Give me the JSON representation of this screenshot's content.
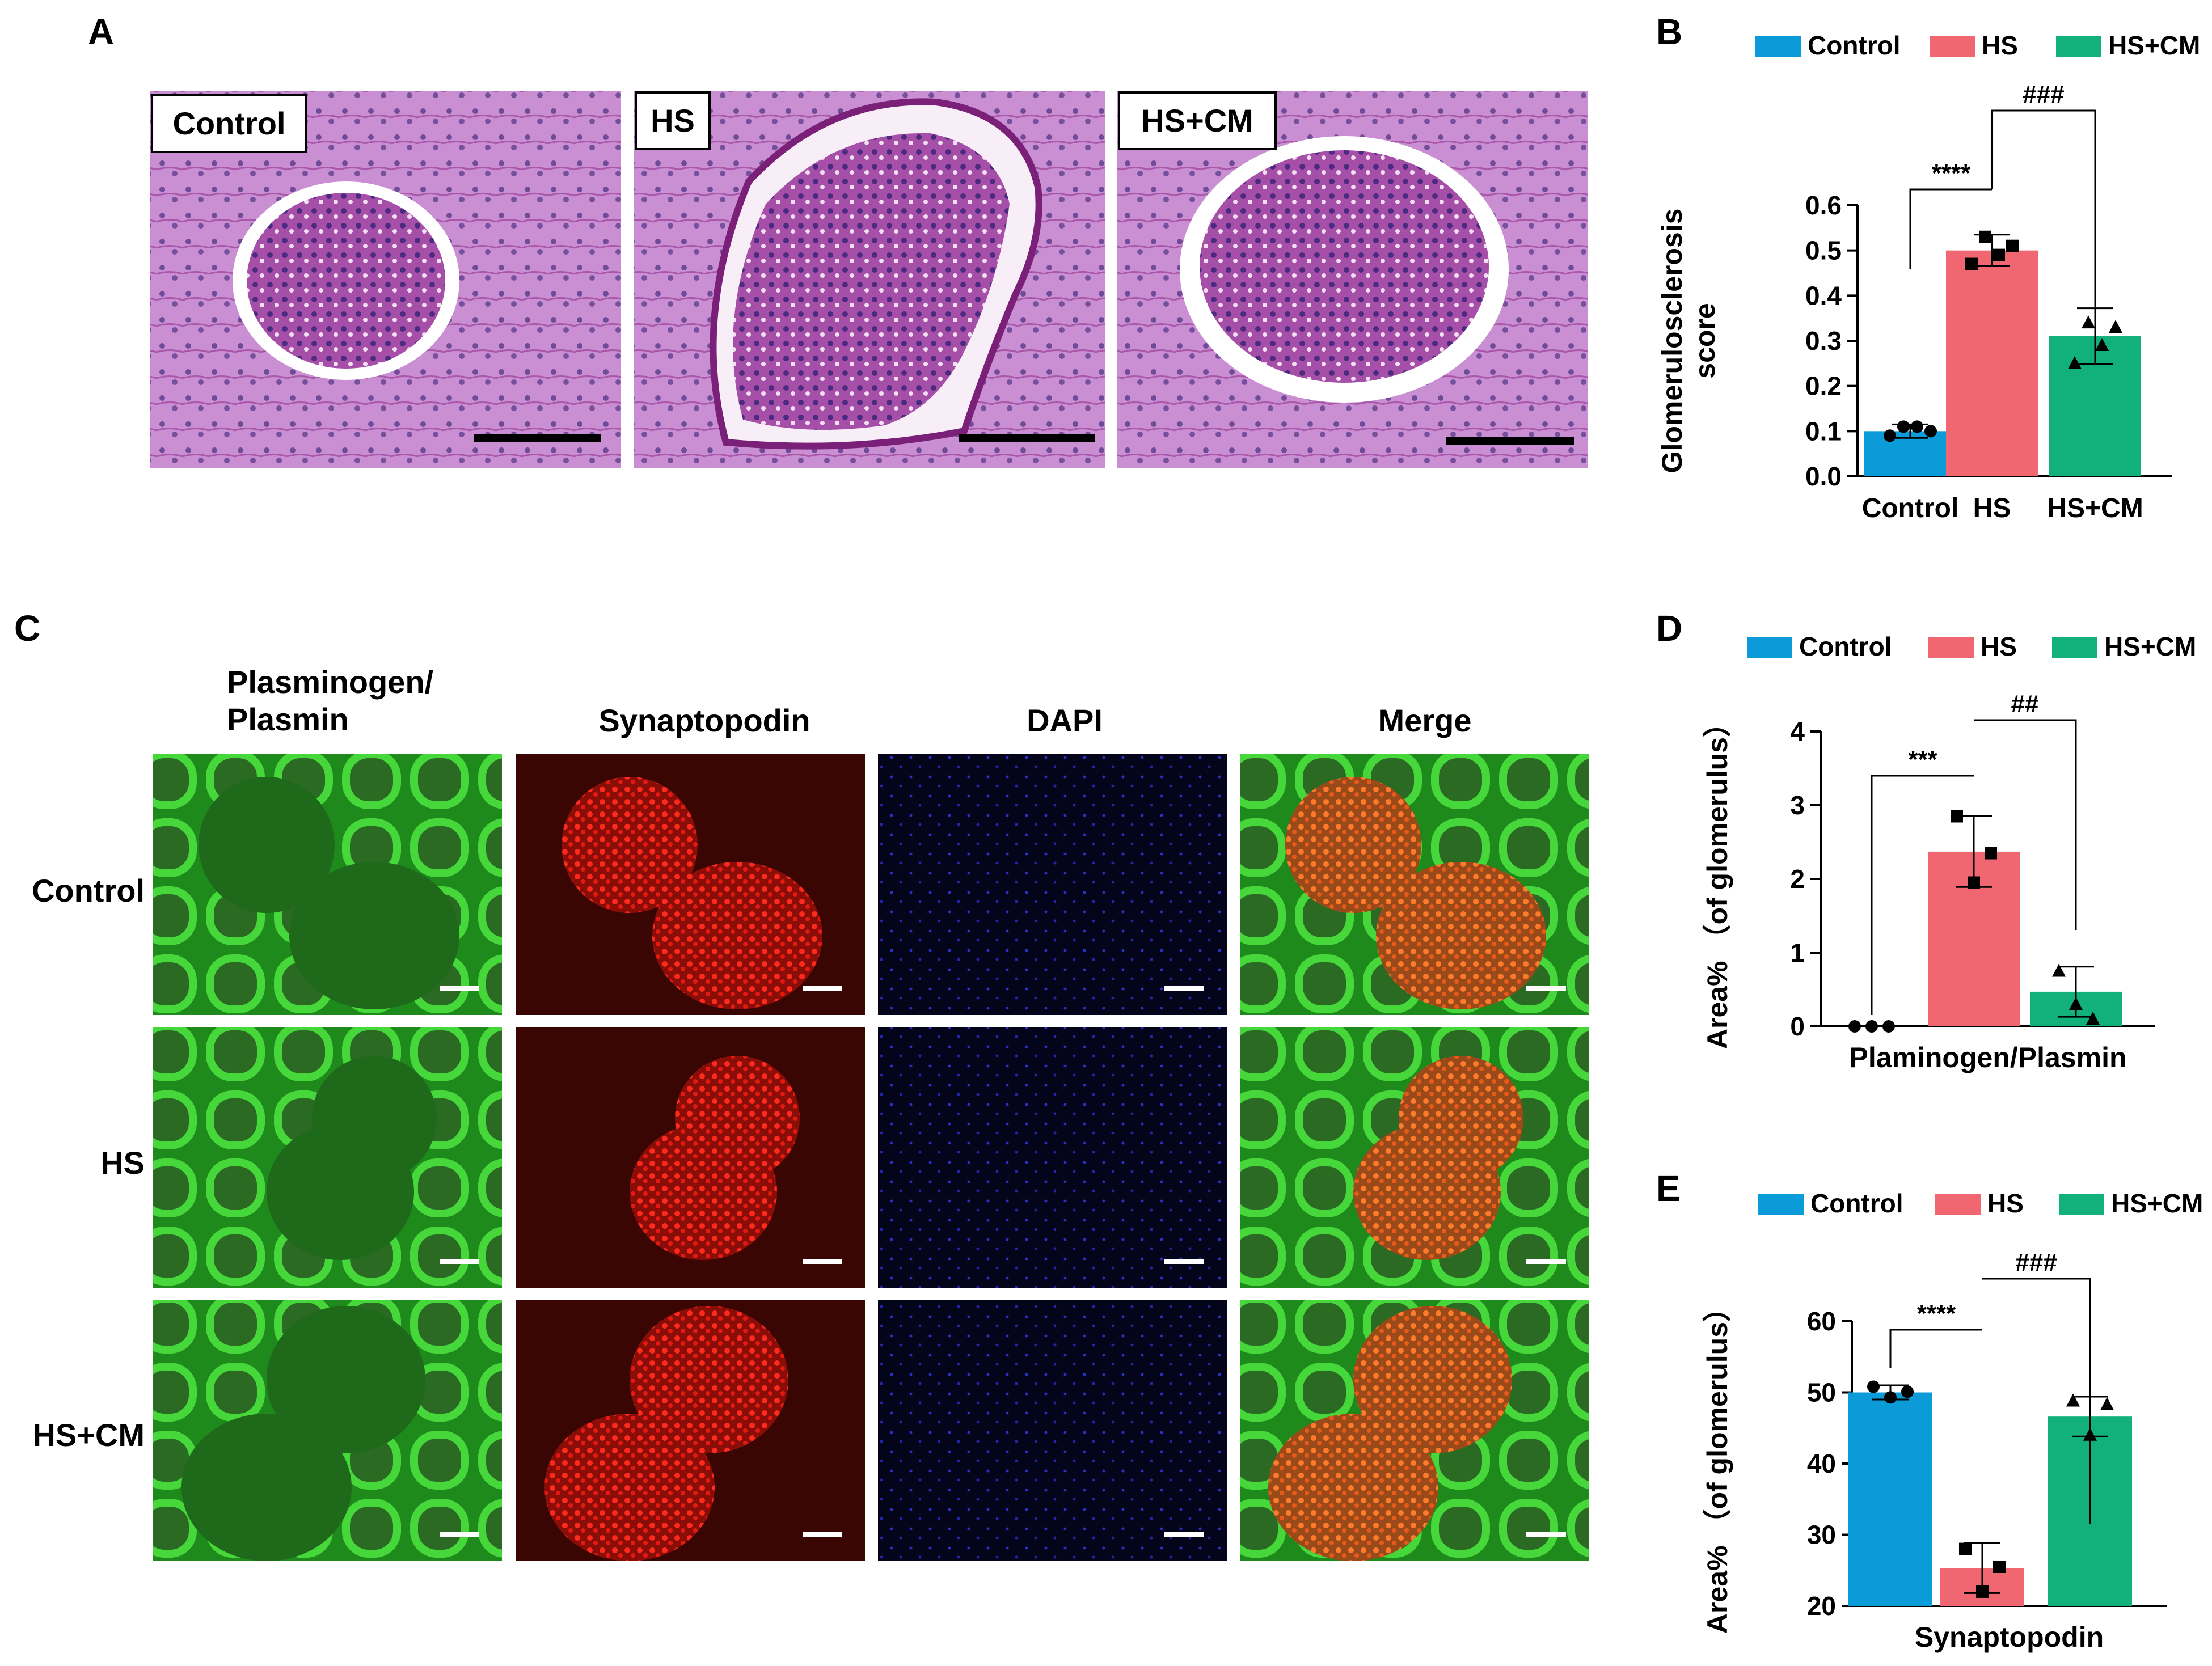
{
  "colors": {
    "control": "#0a9bd8",
    "hs": "#f06671",
    "hscm": "#12b07a",
    "pas_bg": "#c88bd1",
    "pas_dark": "#8a2e86",
    "green_fl": "#2fc42a",
    "red_fl": "#e8201a",
    "blue_fl": "#2a2ec8"
  },
  "panel_A": {
    "letter": "A",
    "images": [
      {
        "label": "Control",
        "icon": "pas-stained-glomerulus-image"
      },
      {
        "label": "HS",
        "icon": "pas-stained-glomerulus-image"
      },
      {
        "label": "HS+CM",
        "icon": "pas-stained-glomerulus-image"
      }
    ]
  },
  "panel_C": {
    "letter": "C",
    "column_headers": [
      "Plasminogen/\nPlasmin",
      "Synaptopodin",
      "DAPI",
      "Merge"
    ],
    "column_header_lines": [
      "Plasminogen/",
      "Plasmin"
    ],
    "row_labels": [
      "Control",
      "HS",
      "HS+CM"
    ]
  },
  "chart_data": [
    {
      "panel": "B",
      "type": "bar",
      "categories": [
        "Control",
        "HS",
        "HS+CM"
      ],
      "legend": [
        "Control",
        "HS",
        "HS+CM"
      ],
      "legend_position": "top",
      "ylabel_lines": [
        "Glomerulosclerosis",
        "score"
      ],
      "xlabel": "",
      "ylim": [
        0,
        0.6
      ],
      "yticks": [
        "0.0",
        "0.1",
        "0.2",
        "0.3",
        "0.4",
        "0.5",
        "0.6"
      ],
      "values": [
        0.1,
        0.5,
        0.31
      ],
      "errors": [
        0.015,
        0.035,
        0.062
      ],
      "points": [
        [
          0.09,
          0.11,
          0.11,
          0.1
        ],
        [
          0.47,
          0.53,
          0.49,
          0.51
        ],
        [
          0.25,
          0.34,
          0.29,
          0.33
        ]
      ],
      "markers": [
        "circle",
        "square",
        "triangle"
      ],
      "significance": [
        {
          "from": 0,
          "to": 1,
          "label": "****"
        },
        {
          "from": 1,
          "to": 2,
          "label": "###"
        }
      ]
    },
    {
      "panel": "D",
      "type": "bar",
      "categories": [
        "Control",
        "HS",
        "HS+CM"
      ],
      "legend": [
        "Control",
        "HS",
        "HS+CM"
      ],
      "legend_position": "top",
      "ylabel": "Area% （of glomerulus）",
      "xlabel": "Plaminogen/Plasmin",
      "ylim": [
        0,
        4
      ],
      "yticks": [
        "0",
        "1",
        "2",
        "3",
        "4"
      ],
      "values": [
        0.0,
        2.37,
        0.47
      ],
      "errors": [
        0.0,
        0.48,
        0.34
      ],
      "points": [
        [
          0,
          0,
          0
        ],
        [
          2.85,
          1.95,
          2.35
        ],
        [
          0.75,
          0.3,
          0.1
        ]
      ],
      "markers": [
        "circle",
        "square",
        "triangle"
      ],
      "significance": [
        {
          "from": 0,
          "to": 1,
          "label": "***"
        },
        {
          "from": 1,
          "to": 2,
          "label": "##"
        }
      ]
    },
    {
      "panel": "E",
      "type": "bar",
      "categories": [
        "Control",
        "HS",
        "HS+CM"
      ],
      "legend": [
        "Control",
        "HS",
        "HS+CM"
      ],
      "legend_position": "top",
      "ylabel": "Area% （of glomerulus）",
      "xlabel": "Synaptopodin",
      "ylim": [
        20,
        60
      ],
      "yticks": [
        "20",
        "30",
        "40",
        "50",
        "60"
      ],
      "values": [
        50.0,
        25.3,
        46.6
      ],
      "errors": [
        1.0,
        3.5,
        2.8
      ],
      "points": [
        [
          50.8,
          49.3,
          50.1
        ],
        [
          28.0,
          22.0,
          25.5
        ],
        [
          48.8,
          44.0,
          48.3
        ]
      ],
      "markers": [
        "circle",
        "square",
        "triangle"
      ],
      "significance": [
        {
          "from": 0,
          "to": 1,
          "label": "****"
        },
        {
          "from": 1,
          "to": 2,
          "label": "###"
        }
      ]
    }
  ]
}
